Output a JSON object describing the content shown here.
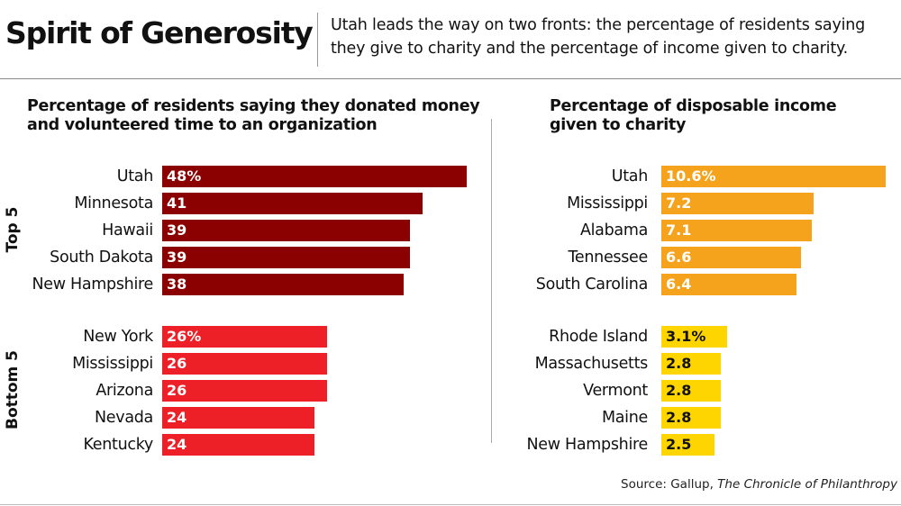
{
  "header": {
    "title": "Spirit of Generosity",
    "subtitle": "Utah leads the way on two fronts: the percentage of residents saying they give to charity and the percentage of income given to charity."
  },
  "source": {
    "prefix": "Source: Gallup, ",
    "publication": "The Chronicle of Philanthropy"
  },
  "colors": {
    "left_top": "#8b0000",
    "left_bottom": "#ee2027",
    "right_top": "#f5a31c",
    "right_bottom": "#ffd500",
    "left_label_text": "#ffffff",
    "right_label_text": "#ffffff",
    "right_bottom_label_text": "#111111"
  },
  "chart_data": [
    {
      "type": "bar",
      "orientation": "horizontal",
      "title": "Percentage of residents saying they donated money and volunteered time to an organization",
      "group_labels": [
        "Top 5",
        "Bottom 5"
      ],
      "groups": [
        {
          "name": "Top 5",
          "categories": [
            "Utah",
            "Minnesota",
            "Hawaii",
            "South Dakota",
            "New Hampshire"
          ],
          "values": [
            48,
            41,
            39,
            39,
            38
          ],
          "labels": [
            "48%",
            "41",
            "39",
            "39",
            "38"
          ]
        },
        {
          "name": "Bottom 5",
          "categories": [
            "New York",
            "Mississippi",
            "Arizona",
            "Nevada",
            "Kentucky"
          ],
          "values": [
            26,
            26,
            26,
            24,
            24
          ],
          "labels": [
            "26%",
            "26",
            "26",
            "24",
            "24"
          ]
        }
      ]
    },
    {
      "type": "bar",
      "orientation": "horizontal",
      "title": "Percentage of disposable income given to charity",
      "groups": [
        {
          "name": "Top 5",
          "categories": [
            "Utah",
            "Mississippi",
            "Alabama",
            "Tennessee",
            "South Carolina"
          ],
          "values": [
            10.6,
            7.2,
            7.1,
            6.6,
            6.4
          ],
          "labels": [
            "10.6%",
            "7.2",
            "7.1",
            "6.6",
            "6.4"
          ]
        },
        {
          "name": "Bottom 5",
          "categories": [
            "Rhode Island",
            "Massachusetts",
            "Vermont",
            "Maine",
            "New Hampshire"
          ],
          "values": [
            3.1,
            2.8,
            2.8,
            2.8,
            2.5
          ],
          "labels": [
            "3.1%",
            "2.8",
            "2.8",
            "2.8",
            "2.5"
          ]
        }
      ]
    }
  ]
}
